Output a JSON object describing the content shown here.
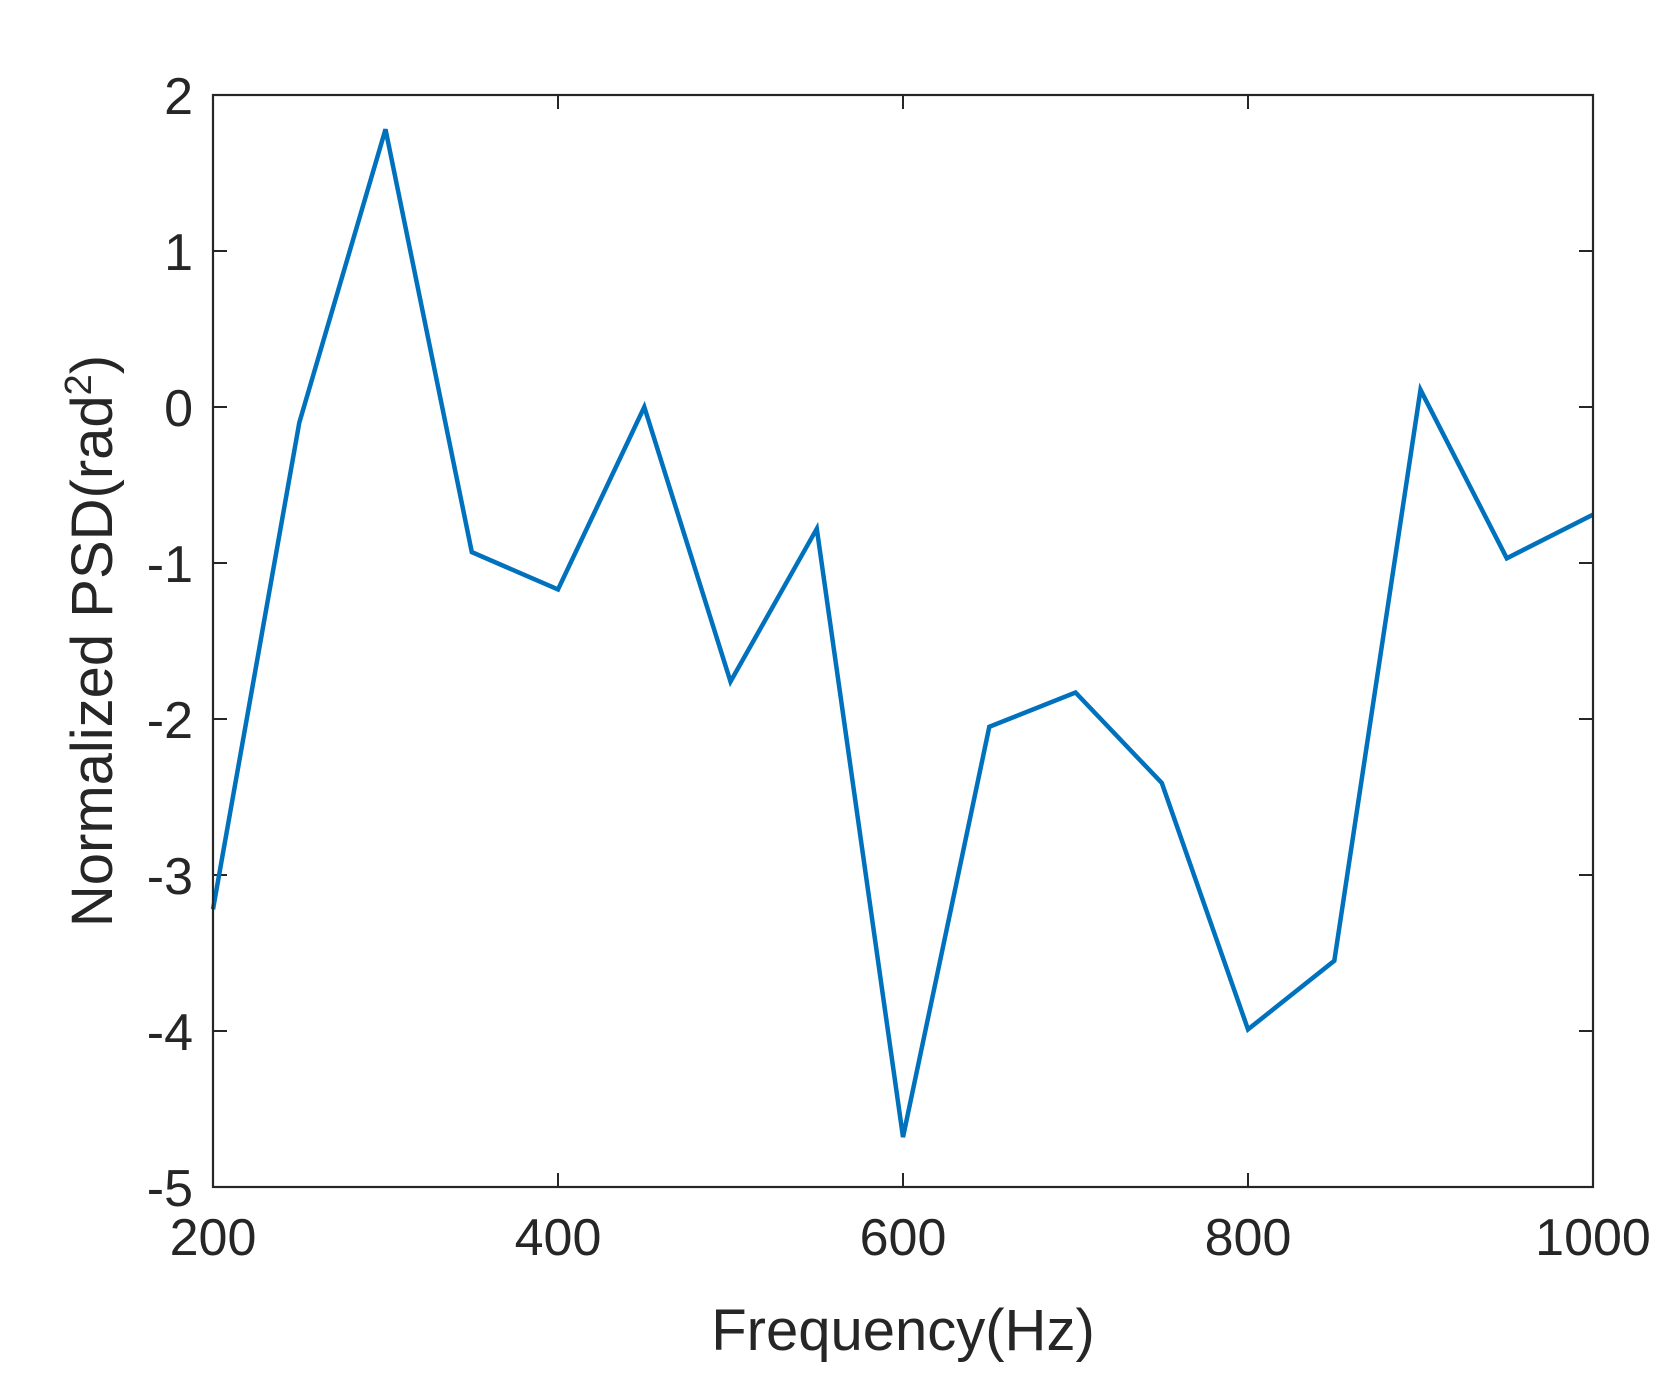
{
  "chart_data": {
    "type": "line",
    "title": "",
    "xlabel": "Frequency(Hz)",
    "ylabel": {
      "main": "Normalized PSD(rad",
      "superscript": "2",
      "close": ")"
    },
    "xlim": [
      200,
      1000
    ],
    "ylim": [
      -5,
      2
    ],
    "xticks": [
      200,
      400,
      600,
      800,
      1000
    ],
    "yticks": [
      2,
      1,
      0,
      -1,
      -2,
      -3,
      -4,
      -5
    ],
    "grid": false,
    "line_color": "#0072BD",
    "series": [
      {
        "x": [
          200,
          250,
          300,
          350,
          400,
          450,
          500,
          550,
          600,
          650,
          700,
          750,
          800,
          850,
          900,
          950,
          1000
        ],
        "y": [
          -3.22,
          -0.1,
          1.78,
          -0.93,
          -1.17,
          0.0,
          -1.76,
          -0.78,
          -4.68,
          -2.05,
          -1.83,
          -2.41,
          -3.99,
          -3.55,
          0.11,
          -0.97,
          -0.69
        ]
      }
    ]
  }
}
